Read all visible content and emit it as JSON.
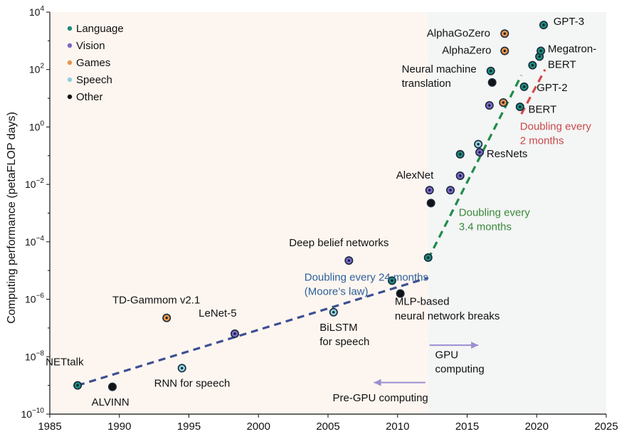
{
  "chart_data": {
    "type": "scatter",
    "title": "",
    "xlabel": "",
    "ylabel": "Computing performance (petaFLOP days)",
    "xlim": [
      1985,
      2025
    ],
    "ylim_log10": [
      -10,
      4
    ],
    "y_scale": "log",
    "x_ticks": [
      "1985",
      "1990",
      "1995",
      "2000",
      "2005",
      "2010",
      "2015",
      "2020",
      "2025"
    ],
    "y_ticks": [
      {
        "base": "10",
        "exp": "4",
        "log": 4
      },
      {
        "base": "10",
        "exp": "2",
        "log": 2
      },
      {
        "base": "10",
        "exp": "0",
        "log": 0
      },
      {
        "base": "10",
        "exp": "−2",
        "log": -2
      },
      {
        "base": "10",
        "exp": "−4",
        "log": -4
      },
      {
        "base": "10",
        "exp": "−6",
        "log": -6
      },
      {
        "base": "10",
        "exp": "−8",
        "log": -8
      },
      {
        "base": "10",
        "exp": "−10",
        "log": -10
      }
    ],
    "legend_position": "top-left",
    "legend": [
      {
        "name": "Language",
        "color": "#1e8a7a"
      },
      {
        "name": "Vision",
        "color": "#7b68c9"
      },
      {
        "name": "Games",
        "color": "#e8944a"
      },
      {
        "name": "Speech",
        "color": "#8fd0dc"
      },
      {
        "name": "Other",
        "color": "#111111"
      }
    ],
    "regions": [
      {
        "name": "pre-gpu",
        "x_from": 1985,
        "x_to": 2012.2,
        "color": "#fdf6f0"
      },
      {
        "name": "gpu",
        "x_from": 2012.2,
        "x_to": 2025,
        "color": "#f4f5f5"
      }
    ],
    "trend_lines": [
      {
        "name": "moores-law",
        "color": "#3d4f93",
        "x1": 1987,
        "log1": -9,
        "x2": 2012.2,
        "log2": -5.25
      },
      {
        "name": "doubling-3-4-months",
        "color": "#1e8c4a",
        "x1": 2012.2,
        "log1": -4.6,
        "x2": 2018.9,
        "log2": 1.8
      },
      {
        "name": "doubling-2-months",
        "color": "#d44a4a",
        "x1": 2018.9,
        "log1": 0.45,
        "x2": 2020.6,
        "log2": 2.0
      }
    ],
    "points": [
      {
        "x": 1987,
        "log10_y": -9,
        "category": "Language",
        "label": "NETtalk",
        "lx": 1984.7,
        "ly": -8.3,
        "anchor": "start"
      },
      {
        "x": 1989.5,
        "log10_y": -9.05,
        "category": "Other",
        "label": "ALVINN",
        "lx": 1988,
        "ly": -9.7,
        "anchor": "start"
      },
      {
        "x": 1993.4,
        "log10_y": -6.65,
        "category": "Games",
        "label": "TD-Gammom v2.1",
        "lx": 1989.5,
        "ly": -6.15,
        "anchor": "start"
      },
      {
        "x": 1994.5,
        "log10_y": -8.4,
        "category": "Speech",
        "label": "RNN for speech",
        "lx": 1992.5,
        "ly": -9.05,
        "anchor": "start"
      },
      {
        "x": 1998.3,
        "log10_y": -7.2,
        "category": "Vision",
        "label": "LeNet-5",
        "lx": 1995.7,
        "ly": -6.6,
        "anchor": "start"
      },
      {
        "x": 2005.4,
        "log10_y": -6.45,
        "category": "Speech",
        "label": "BiLSTM",
        "lx": 2004.4,
        "ly": -7.1,
        "anchor": "start"
      },
      {
        "x": 2005.4,
        "log10_y": -6.45,
        "category": "Speech",
        "label": "for speech",
        "lx": 2004.4,
        "ly": -7.6,
        "anchor": "start",
        "hidden_marker": true
      },
      {
        "x": 2006.5,
        "log10_y": -4.65,
        "category": "Vision",
        "label": "Deep belief networks",
        "lx": 2002.2,
        "ly": -4.15,
        "anchor": "start"
      },
      {
        "x": 2009.6,
        "log10_y": -5.35,
        "category": "Language",
        "label": "",
        "lx": 0,
        "ly": 0,
        "anchor": "start"
      },
      {
        "x": 2010.2,
        "log10_y": -5.8,
        "category": "Other",
        "label": "MLP-based",
        "lx": 2009.8,
        "ly": -6.2,
        "anchor": "start"
      },
      {
        "x": 2010.2,
        "log10_y": -5.8,
        "category": "Other",
        "label": "neural network breaks",
        "lx": 2009.8,
        "ly": -6.7,
        "anchor": "start",
        "hidden_marker": true
      },
      {
        "x": 2012.2,
        "log10_y": -4.55,
        "category": "Language",
        "label": "",
        "lx": 0,
        "ly": 0,
        "anchor": "start"
      },
      {
        "x": 2012.3,
        "log10_y": -2.2,
        "category": "Vision",
        "label": "AlexNet",
        "lx": 2009.9,
        "ly": -1.8,
        "anchor": "start"
      },
      {
        "x": 2012.4,
        "log10_y": -2.65,
        "category": "Other",
        "label": "",
        "lx": 0,
        "ly": 0,
        "anchor": "start"
      },
      {
        "x": 2013.8,
        "log10_y": -2.2,
        "category": "Vision",
        "label": "",
        "lx": 0,
        "ly": 0,
        "anchor": "start"
      },
      {
        "x": 2014.5,
        "log10_y": -1.7,
        "category": "Vision",
        "label": "",
        "lx": 0,
        "ly": 0,
        "anchor": "start"
      },
      {
        "x": 2014.5,
        "log10_y": -0.95,
        "category": "Language",
        "label": "",
        "lx": 0,
        "ly": 0,
        "anchor": "start"
      },
      {
        "x": 2015.8,
        "log10_y": -0.6,
        "category": "Speech",
        "label": "",
        "lx": 0,
        "ly": 0,
        "anchor": "start"
      },
      {
        "x": 2015.9,
        "log10_y": -0.88,
        "category": "Vision",
        "label": "ResNets",
        "lx": 2016.4,
        "ly": -1.05,
        "anchor": "start"
      },
      {
        "x": 2016.6,
        "log10_y": 0.75,
        "category": "Vision",
        "label": "",
        "lx": 0,
        "ly": 0,
        "anchor": "start"
      },
      {
        "x": 2016.7,
        "log10_y": 1.95,
        "category": "Language",
        "label": "Neural machine",
        "lx": 2010.3,
        "ly": 1.9,
        "anchor": "start"
      },
      {
        "x": 2016.8,
        "log10_y": 1.55,
        "category": "Other",
        "label": "translation",
        "lx": 2010.3,
        "ly": 1.4,
        "anchor": "start"
      },
      {
        "x": 2017.6,
        "log10_y": 0.85,
        "category": "Games",
        "label": "",
        "lx": 0,
        "ly": 0,
        "anchor": "start"
      },
      {
        "x": 2017.7,
        "log10_y": 2.65,
        "category": "Games",
        "label": "AlphaZero",
        "lx": 2013.2,
        "ly": 2.55,
        "anchor": "start"
      },
      {
        "x": 2017.7,
        "log10_y": 3.25,
        "category": "Games",
        "label": "AlphaGoZero",
        "lx": 2012.1,
        "ly": 3.15,
        "anchor": "start"
      },
      {
        "x": 2018.8,
        "log10_y": 0.7,
        "category": "Language",
        "label": "BERT",
        "lx": 2019.4,
        "ly": 0.5,
        "anchor": "start"
      },
      {
        "x": 2019.1,
        "log10_y": 1.4,
        "category": "Language",
        "label": "GPT-2",
        "lx": 2020,
        "ly": 1.25,
        "anchor": "start"
      },
      {
        "x": 2019.7,
        "log10_y": 2.15,
        "category": "Language",
        "label": "",
        "lx": 0,
        "ly": 0,
        "anchor": "start"
      },
      {
        "x": 2020.2,
        "log10_y": 2.45,
        "category": "Language",
        "label": "BERT",
        "lx": 2019.4,
        "ly": 2.1,
        "anchor": "start",
        "label_only_offset": true
      },
      {
        "x": 2020.3,
        "log10_y": 2.65,
        "category": "Language",
        "label": "Megatron-",
        "lx": 2020.8,
        "ly": 2.6,
        "anchor": "start"
      },
      {
        "x": 2020.5,
        "log10_y": 3.55,
        "category": "Language",
        "label": "GPT-3",
        "lx": 2021.2,
        "ly": 3.55,
        "anchor": "start"
      }
    ],
    "annotations": [
      {
        "text": "Doubling every 24 months",
        "x": 2003.3,
        "log_y": -5.35,
        "color": "#2d5f9a",
        "anchor": "start"
      },
      {
        "text": "(Moore’s law)",
        "x": 2003.3,
        "log_y": -5.85,
        "color": "#2d5f9a",
        "anchor": "start"
      },
      {
        "text": "Doubling every",
        "x": 2014.4,
        "log_y": -3.1,
        "color": "#3a8a3a",
        "anchor": "start"
      },
      {
        "text": "3.4 months",
        "x": 2014.4,
        "log_y": -3.6,
        "color": "#3a8a3a",
        "anchor": "start"
      },
      {
        "text": "Doubling every",
        "x": 2018.8,
        "log_y": -0.1,
        "color": "#c94a4a",
        "anchor": "start"
      },
      {
        "text": "2 months",
        "x": 2018.8,
        "log_y": -0.6,
        "color": "#c94a4a",
        "anchor": "start"
      },
      {
        "text": "GPU",
        "x": 2012.7,
        "log_y": -8.05,
        "color": "#111111",
        "anchor": "start"
      },
      {
        "text": "computing",
        "x": 2012.7,
        "log_y": -8.55,
        "color": "#111111",
        "anchor": "start"
      },
      {
        "text": "Pre-GPU computing",
        "x": 2012.2,
        "log_y": -9.55,
        "color": "#111111",
        "anchor": "end"
      }
    ],
    "arrows": [
      {
        "name": "gpu-arrow",
        "x_from": 2012.3,
        "x_to": 2015.8,
        "log_y": -7.6,
        "color": "#9b8fd0"
      },
      {
        "name": "pre-gpu-arrow",
        "x_from": 2012.0,
        "x_to": 2008.3,
        "log_y": -8.9,
        "color": "#9b8fd0"
      }
    ]
  }
}
